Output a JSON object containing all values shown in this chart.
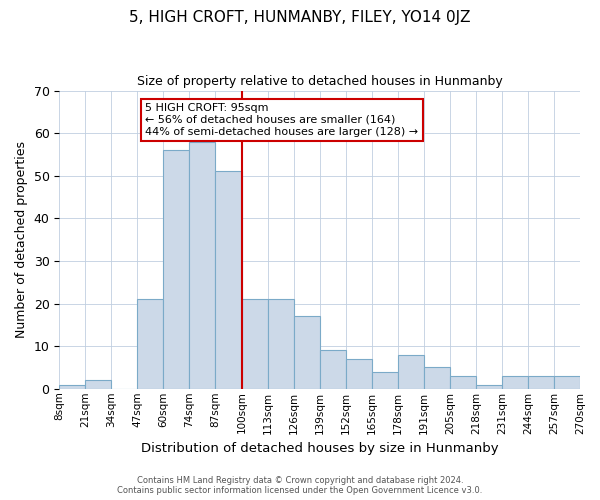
{
  "title": "5, HIGH CROFT, HUNMANBY, FILEY, YO14 0JZ",
  "subtitle": "Size of property relative to detached houses in Hunmanby",
  "xlabel": "Distribution of detached houses by size in Hunmanby",
  "ylabel": "Number of detached properties",
  "bin_labels": [
    "8sqm",
    "21sqm",
    "34sqm",
    "47sqm",
    "60sqm",
    "74sqm",
    "87sqm",
    "100sqm",
    "113sqm",
    "126sqm",
    "139sqm",
    "152sqm",
    "165sqm",
    "178sqm",
    "191sqm",
    "205sqm",
    "218sqm",
    "231sqm",
    "244sqm",
    "257sqm",
    "270sqm"
  ],
  "bar_values": [
    1,
    2,
    0,
    21,
    56,
    58,
    51,
    21,
    21,
    17,
    9,
    7,
    4,
    8,
    5,
    3,
    1,
    3,
    3,
    3
  ],
  "bar_color": "#ccd9e8",
  "bar_edge_color": "#7baac8",
  "vline_color": "#cc0000",
  "vline_position": 7,
  "annotation_title": "5 HIGH CROFT: 95sqm",
  "annotation_line1": "← 56% of detached houses are smaller (164)",
  "annotation_line2": "44% of semi-detached houses are larger (128) →",
  "annotation_box_color": "#ffffff",
  "annotation_box_edge_color": "#cc0000",
  "ylim": [
    0,
    70
  ],
  "yticks": [
    0,
    10,
    20,
    30,
    40,
    50,
    60,
    70
  ],
  "footer_line1": "Contains HM Land Registry data © Crown copyright and database right 2024.",
  "footer_line2": "Contains public sector information licensed under the Open Government Licence v3.0."
}
